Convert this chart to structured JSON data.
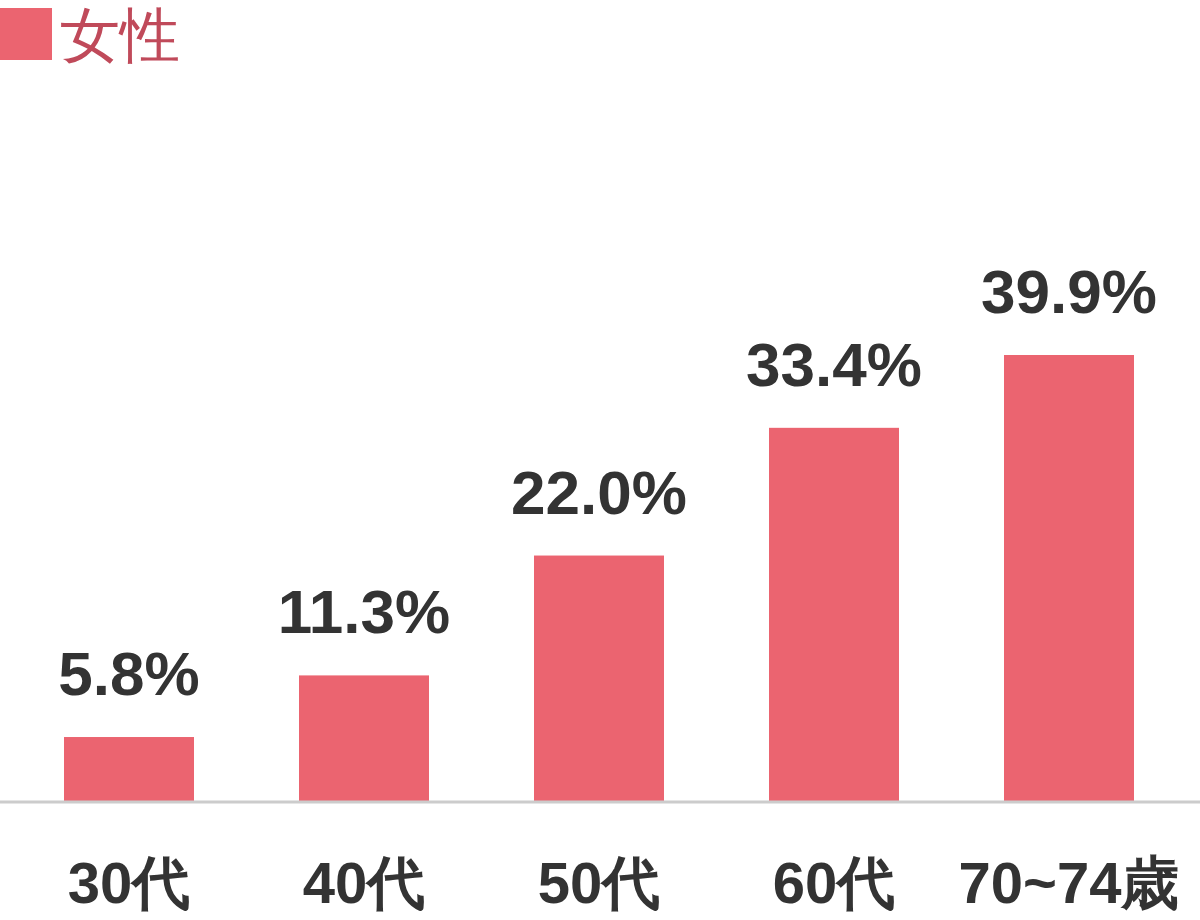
{
  "chart_data": {
    "type": "bar",
    "categories": [
      "30代",
      "40代",
      "50代",
      "60代",
      "70~74歳"
    ],
    "series": [
      {
        "name": "女性",
        "color": "#eb6470",
        "values": [
          5.8,
          11.3,
          22.0,
          33.4,
          39.9
        ],
        "value_labels": [
          "5.8%",
          "11.3%",
          "22.0%",
          "33.4%",
          "39.9%"
        ]
      }
    ],
    "legend": "top left"
  }
}
